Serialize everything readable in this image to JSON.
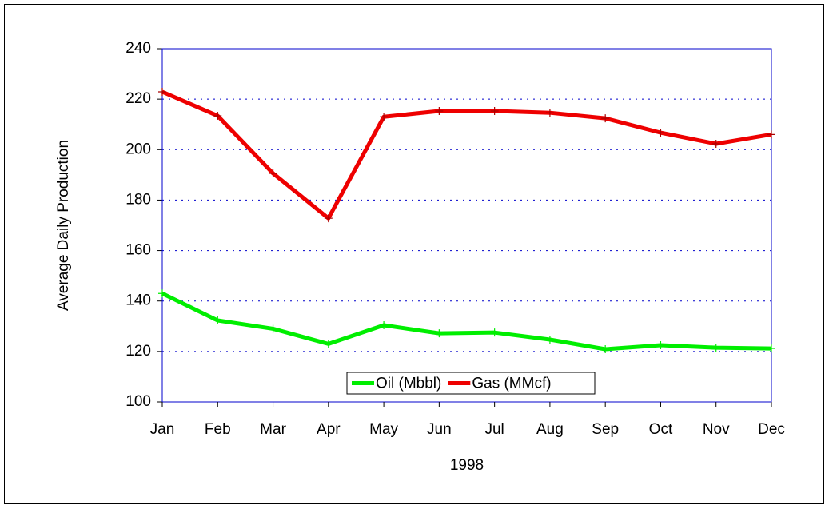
{
  "chart_data": {
    "type": "line",
    "x_label": "1998",
    "y_label": "Average Daily Production",
    "categories": [
      "Jan",
      "Feb",
      "Mar",
      "Apr",
      "May",
      "Jun",
      "Jul",
      "Aug",
      "Sep",
      "Oct",
      "Nov",
      "Dec"
    ],
    "series": [
      {
        "name": "Oil (Mbbl)",
        "color": "#00ee00",
        "values": [
          143,
          132.3,
          129,
          123,
          130.4,
          127.2,
          127.5,
          124.7,
          120.9,
          122.5,
          121.5,
          121.2
        ]
      },
      {
        "name": "Gas (MMcf)",
        "color": "#ee0000",
        "values": [
          222.9,
          213.4,
          190.6,
          172.8,
          213,
          215.3,
          215.3,
          214.6,
          212.4,
          206.7,
          202.3,
          206
        ]
      }
    ],
    "ylim": [
      100,
      240
    ],
    "yticks": [
      100,
      120,
      140,
      160,
      180,
      200,
      220,
      240
    ],
    "grid": true,
    "legend": "lower center"
  }
}
